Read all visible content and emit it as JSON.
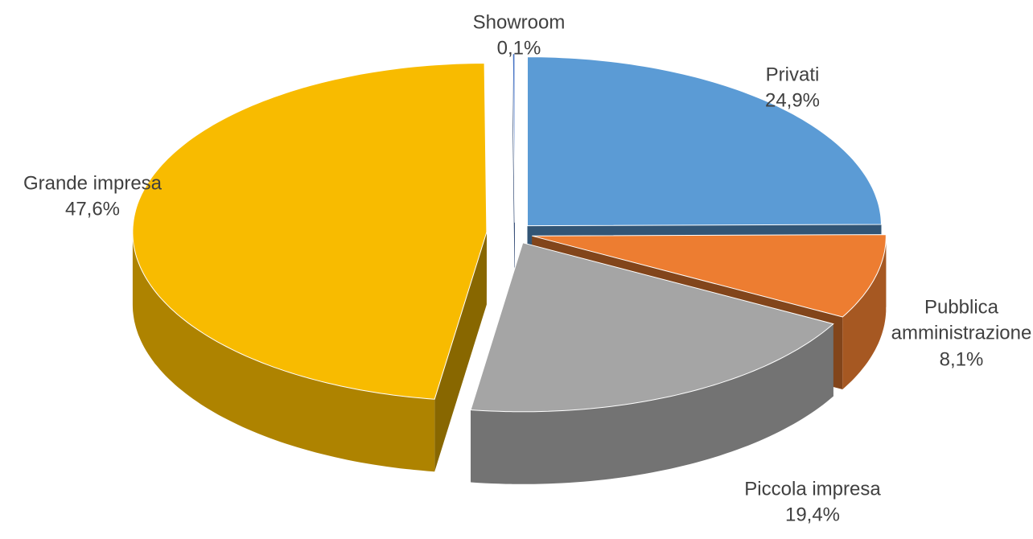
{
  "chart_data": {
    "type": "pie",
    "categories": [
      "Privati",
      "Pubblica amministrazione",
      "Piccola impresa",
      "Grande impresa",
      "Showroom"
    ],
    "values": [
      24.9,
      8.1,
      19.4,
      47.6,
      0.1
    ],
    "value_labels": [
      "24,9%",
      "8,1%",
      "19,4%",
      "47,6%",
      "0,1%"
    ],
    "colors": [
      "#5b9bd5",
      "#ed7d31",
      "#a5a5a5",
      "#f8bb00",
      "#4472c4"
    ]
  }
}
